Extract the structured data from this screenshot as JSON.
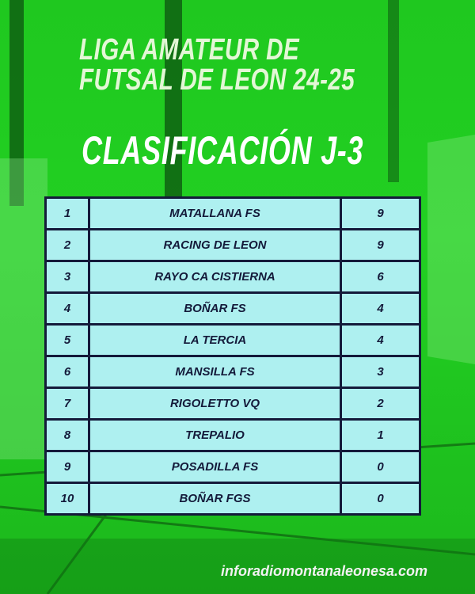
{
  "header": {
    "title_line1": "LIGA AMATEUR DE",
    "title_line2": "FUTSAL DE LEON 24-25",
    "subtitle": "CLASIFICACIÓN J-3"
  },
  "standings": [
    {
      "pos": "1",
      "team": "MATALLANA FS",
      "points": "9"
    },
    {
      "pos": "2",
      "team": "RACING DE LEON",
      "points": "9"
    },
    {
      "pos": "3",
      "team": "RAYO CA CISTIERNA",
      "points": "6"
    },
    {
      "pos": "4",
      "team": "BOÑAR FS",
      "points": "4"
    },
    {
      "pos": "5",
      "team": "LA TERCIA",
      "points": "4"
    },
    {
      "pos": "6",
      "team": "MANSILLA FS",
      "points": "3"
    },
    {
      "pos": "7",
      "team": "RIGOLETTO VQ",
      "points": "2"
    },
    {
      "pos": "8",
      "team": "TREPALIO",
      "points": "1"
    },
    {
      "pos": "9",
      "team": "POSADILLA FS",
      "points": "0"
    },
    {
      "pos": "10",
      "team": "BOÑAR FGS",
      "points": "0"
    }
  ],
  "footer": {
    "website": "inforadiomontanaleonesa.com"
  },
  "colors": {
    "background": "#22cc22",
    "table_fill": "#aef0f0",
    "table_border": "#141a3a"
  }
}
